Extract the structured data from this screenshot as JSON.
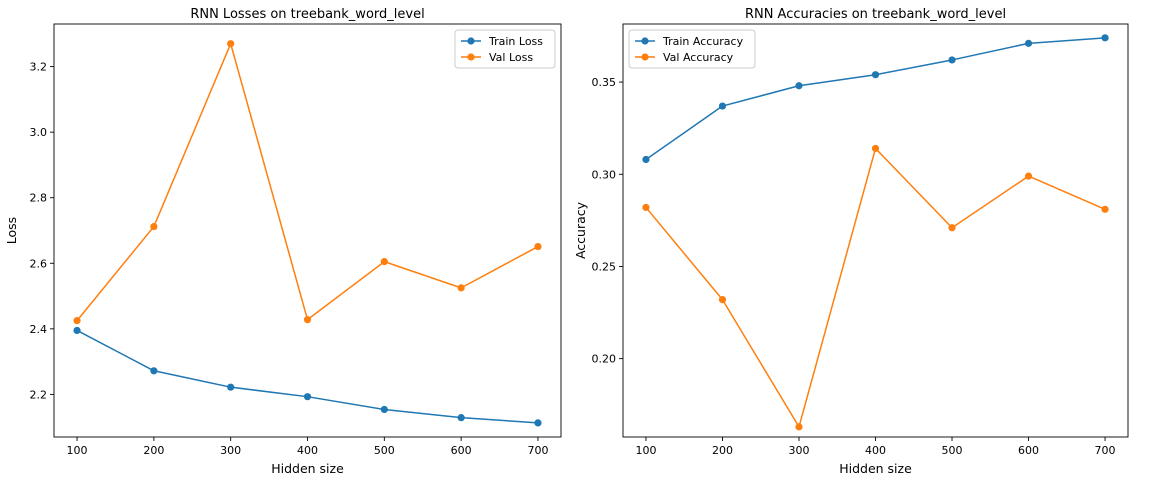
{
  "chart_data": [
    {
      "type": "line",
      "title": "RNN Losses on treebank_word_level",
      "xlabel": "Hidden size",
      "ylabel": "Loss",
      "x": [
        100,
        200,
        300,
        400,
        500,
        600,
        700
      ],
      "xticks": [
        100,
        200,
        300,
        400,
        500,
        600,
        700
      ],
      "yticks": [
        2.2,
        2.4,
        2.6,
        2.8,
        3.0,
        3.2
      ],
      "ytick_labels": [
        "2.2",
        "2.4",
        "2.6",
        "2.8",
        "3.0",
        "3.2"
      ],
      "xlim": [
        70,
        730
      ],
      "ylim": [
        2.07,
        3.33
      ],
      "grid": false,
      "legend_position": "top-right",
      "series": [
        {
          "name": "Train Loss",
          "color": "#1f77b4",
          "marker": "circle",
          "values": [
            2.395,
            2.272,
            2.222,
            2.193,
            2.154,
            2.129,
            2.113
          ]
        },
        {
          "name": "Val Loss",
          "color": "#ff7f0e",
          "marker": "circle",
          "values": [
            2.425,
            2.712,
            3.27,
            2.428,
            2.605,
            2.525,
            2.651
          ]
        }
      ]
    },
    {
      "type": "line",
      "title": "RNN Accuracies on treebank_word_level",
      "xlabel": "Hidden size",
      "ylabel": "Accuracy",
      "x": [
        100,
        200,
        300,
        400,
        500,
        600,
        700
      ],
      "xticks": [
        100,
        200,
        300,
        400,
        500,
        600,
        700
      ],
      "yticks": [
        0.2,
        0.25,
        0.3,
        0.35
      ],
      "ytick_labels": [
        "0.20",
        "0.25",
        "0.30",
        "0.35"
      ],
      "xlim": [
        70,
        730
      ],
      "ylim": [
        0.1575,
        0.3815
      ],
      "grid": false,
      "legend_position": "top-left",
      "series": [
        {
          "name": "Train Accuracy",
          "color": "#1f77b4",
          "marker": "circle",
          "values": [
            0.308,
            0.337,
            0.348,
            0.354,
            0.362,
            0.371,
            0.374
          ]
        },
        {
          "name": "Val Accuracy",
          "color": "#ff7f0e",
          "marker": "circle",
          "values": [
            0.282,
            0.232,
            0.163,
            0.314,
            0.271,
            0.299,
            0.281
          ]
        }
      ]
    }
  ]
}
